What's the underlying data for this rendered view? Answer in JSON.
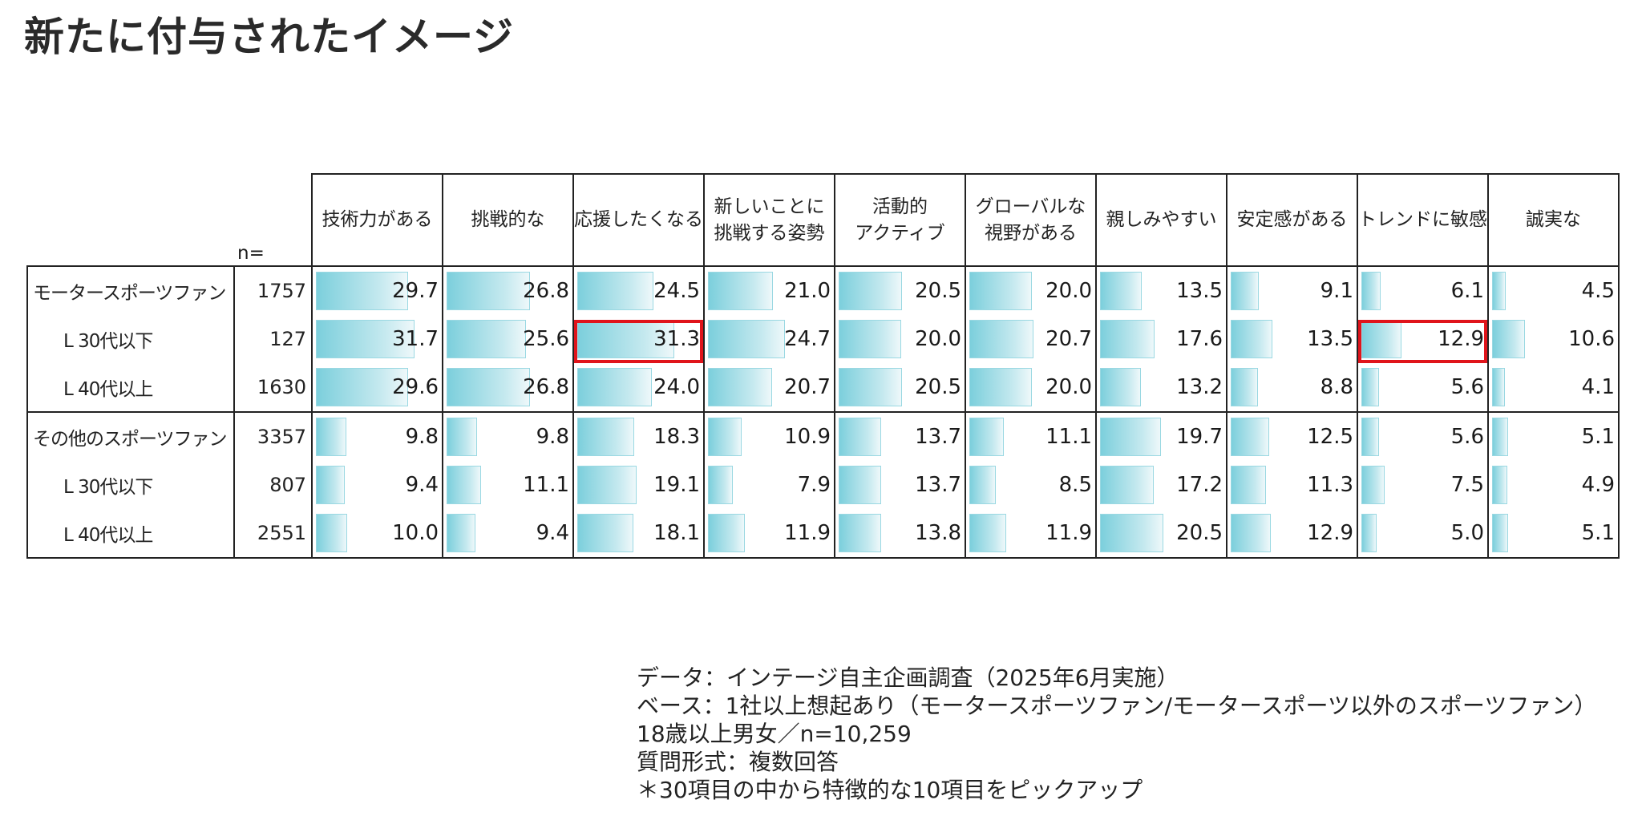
{
  "title": "新たに付与されたイメージ",
  "chart_data": {
    "type": "table",
    "n_label": "n=",
    "columns": [
      [
        "技術力がある"
      ],
      [
        "挑戦的な"
      ],
      [
        "応援したくなる"
      ],
      [
        "新しいことに",
        "挑戦する姿勢"
      ],
      [
        "活動的",
        "アクティブ"
      ],
      [
        "グローバルな",
        "視野がある"
      ],
      [
        "親しみやすい"
      ],
      [
        "安定感がある"
      ],
      [
        "トレンドに敏感"
      ],
      [
        "誠実な"
      ]
    ],
    "bar_max": 40,
    "rows": [
      {
        "label": "モータースポーツファン",
        "sub": false,
        "n": "1757",
        "values": [
          29.7,
          26.8,
          24.5,
          21.0,
          20.5,
          20.0,
          13.5,
          9.1,
          6.1,
          4.5
        ]
      },
      {
        "label": "L 30代以下",
        "sub": true,
        "n": "127",
        "values": [
          31.7,
          25.6,
          31.3,
          24.7,
          20.0,
          20.7,
          17.6,
          13.5,
          12.9,
          10.6
        ]
      },
      {
        "label": "L 40代以上",
        "sub": true,
        "n": "1630",
        "values": [
          29.6,
          26.8,
          24.0,
          20.7,
          20.5,
          20.0,
          13.2,
          8.8,
          5.6,
          4.1
        ]
      },
      {
        "label": "その他のスポーツファン",
        "sub": false,
        "n": "3357",
        "values": [
          9.8,
          9.8,
          18.3,
          10.9,
          13.7,
          11.1,
          19.7,
          12.5,
          5.6,
          5.1
        ]
      },
      {
        "label": "L 30代以下",
        "sub": true,
        "n": "807",
        "values": [
          9.4,
          11.1,
          19.1,
          7.9,
          13.7,
          8.5,
          17.2,
          11.3,
          7.5,
          4.9
        ]
      },
      {
        "label": "L 40代以上",
        "sub": true,
        "n": "2551",
        "values": [
          10.0,
          9.4,
          18.1,
          11.9,
          13.8,
          11.9,
          20.5,
          12.9,
          5.0,
          5.1
        ]
      }
    ],
    "highlights": [
      {
        "row": 1,
        "col": 2
      },
      {
        "row": 1,
        "col": 8
      }
    ],
    "colors": {
      "bar": "#7ccfdc",
      "highlight": "#e0141b",
      "grid": "#222222"
    }
  },
  "notes": [
    "データ：インテージ自主企画調査（2025年6月実施）",
    "ベース：1社以上想起あり（モータースポーツファン/モータースポーツ以外のスポーツファン）",
    "18歳以上男女／n=10,259",
    "質問形式：複数回答",
    "＊30項目の中から特徴的な10項目をピックアップ"
  ]
}
